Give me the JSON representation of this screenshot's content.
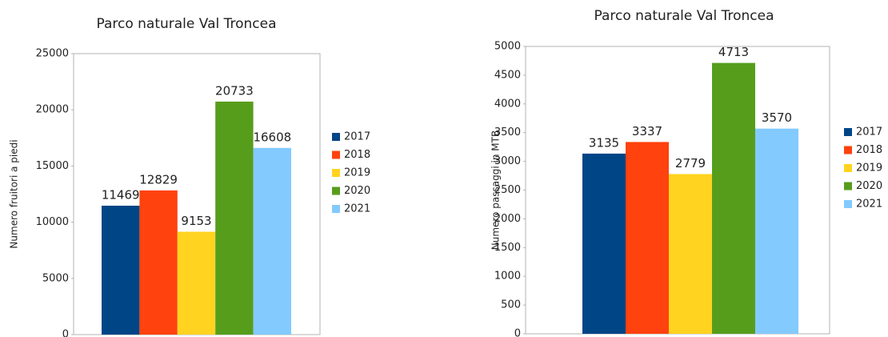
{
  "chart_data": [
    {
      "type": "bar",
      "title": "Parco naturale Val Troncea",
      "ylabel": "Numero fruitori a piedi",
      "categories": [
        null
      ],
      "series": [
        {
          "name": "2017",
          "color": "#004586",
          "values": [
            11469
          ]
        },
        {
          "name": "2018",
          "color": "#ff420e",
          "values": [
            12829
          ]
        },
        {
          "name": "2019",
          "color": "#ffd320",
          "values": [
            9153
          ]
        },
        {
          "name": "2020",
          "color": "#579d1c",
          "values": [
            20733
          ]
        },
        {
          "name": "2021",
          "color": "#83caff",
          "values": [
            16608
          ]
        }
      ],
      "ylim": [
        0,
        25000
      ],
      "yticks": [
        0,
        5000,
        10000,
        15000,
        20000,
        25000
      ],
      "grid": false,
      "legend": "right"
    },
    {
      "type": "bar",
      "title": "Parco naturale Val Troncea",
      "ylabel": "Numero passaggi in MTB",
      "categories": [
        null
      ],
      "series": [
        {
          "name": "2017",
          "color": "#004586",
          "values": [
            3135
          ]
        },
        {
          "name": "2018",
          "color": "#ff420e",
          "values": [
            3337
          ]
        },
        {
          "name": "2019",
          "color": "#ffd320",
          "values": [
            2779
          ]
        },
        {
          "name": "2020",
          "color": "#579d1c",
          "values": [
            4713
          ]
        },
        {
          "name": "2021",
          "color": "#83caff",
          "values": [
            3570
          ]
        }
      ],
      "ylim": [
        0,
        5000
      ],
      "yticks": [
        0,
        500,
        1000,
        1500,
        2000,
        2500,
        3000,
        3500,
        4000,
        4500,
        5000
      ],
      "grid": false,
      "legend": "right"
    }
  ]
}
